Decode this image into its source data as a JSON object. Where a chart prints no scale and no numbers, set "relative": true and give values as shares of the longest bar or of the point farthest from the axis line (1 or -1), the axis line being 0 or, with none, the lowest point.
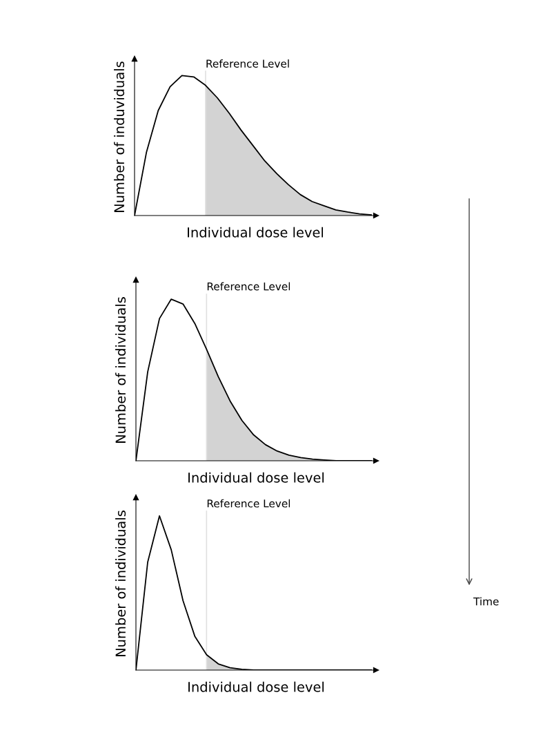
{
  "chart_data": [
    {
      "type": "line",
      "relative": true,
      "xlabel": "Individual dose level",
      "ylabel": "Number of induviduals",
      "tick_labels": false,
      "grid": false,
      "categories": [
        null,
        null,
        null,
        null,
        null,
        null,
        null,
        null,
        null,
        null,
        null,
        null,
        null,
        null,
        null,
        null,
        null,
        null,
        null,
        null,
        null
      ],
      "series": [
        {
          "color": "#000000",
          "values": [
            0,
            0.45,
            0.75,
            0.92,
            1.0,
            0.99,
            0.93,
            0.84,
            0.73,
            0.61,
            0.5,
            0.39,
            0.3,
            0.22,
            0.15,
            0.1,
            0.07,
            0.04,
            0.025,
            0.012,
            0.005
          ]
        },
        {
          "type": "area",
          "color": "#d3d3d3",
          "values": [
            null,
            null,
            null,
            null,
            null,
            null,
            0.93,
            0.84,
            0.73,
            0.61,
            0.5,
            0.39,
            0.3,
            0.22,
            0.15,
            0.1,
            0.07,
            0.04,
            0.025,
            0.012,
            0.005
          ]
        }
      ],
      "annotations": [
        "Reference Level"
      ]
    },
    {
      "type": "line",
      "relative": true,
      "xlabel": "Individual dose level",
      "ylabel": "Number of individuals",
      "tick_labels": false,
      "grid": false,
      "categories": [
        null,
        null,
        null,
        null,
        null,
        null,
        null,
        null,
        null,
        null,
        null,
        null,
        null,
        null,
        null,
        null,
        null,
        null,
        null,
        null,
        null
      ],
      "series": [
        {
          "color": "#000000",
          "values": [
            0,
            0.55,
            0.88,
            1.0,
            0.97,
            0.85,
            0.69,
            0.52,
            0.37,
            0.25,
            0.16,
            0.1,
            0.06,
            0.035,
            0.02,
            0.01,
            0.005,
            0,
            0,
            0,
            0
          ]
        },
        {
          "type": "area",
          "color": "#d3d3d3",
          "values": [
            null,
            null,
            null,
            null,
            null,
            null,
            0.69,
            0.52,
            0.37,
            0.25,
            0.16,
            0.1,
            0.06,
            0.035,
            0.02,
            0.01,
            0.005,
            0,
            0,
            0,
            0
          ]
        }
      ],
      "annotations": [
        "Reference Level"
      ]
    },
    {
      "type": "line",
      "relative": true,
      "xlabel": "Individual dose level",
      "ylabel": "Number of individuals",
      "tick_labels": false,
      "grid": false,
      "categories": [
        null,
        null,
        null,
        null,
        null,
        null,
        null,
        null,
        null,
        null,
        null,
        null,
        null,
        null,
        null,
        null,
        null,
        null,
        null,
        null,
        null
      ],
      "series": [
        {
          "color": "#000000",
          "values": [
            0,
            0.7,
            1.0,
            0.78,
            0.45,
            0.22,
            0.1,
            0.04,
            0.015,
            0.005,
            0,
            0,
            0,
            0,
            0,
            0,
            0,
            0,
            0,
            0,
            0
          ]
        },
        {
          "type": "area",
          "color": "#d3d3d3",
          "values": [
            null,
            null,
            null,
            null,
            null,
            null,
            0.1,
            0.04,
            0.015,
            0.005,
            0,
            0,
            0,
            0,
            0,
            0,
            0,
            0,
            0,
            0,
            0
          ]
        }
      ],
      "annotations": [
        "Reference Level",
        "Time"
      ]
    }
  ]
}
